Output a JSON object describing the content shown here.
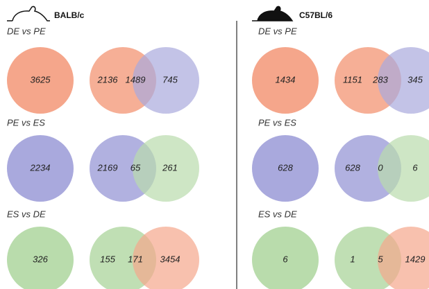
{
  "panels": [
    {
      "strain": "BALB/c",
      "comparisons": [
        {
          "label": "DE vs PE",
          "total": 3625,
          "venn": [
            2136,
            1489,
            745
          ],
          "colors": [
            "#f5a68b",
            "#a9a9dd"
          ]
        },
        {
          "label": "PE vs ES",
          "total": 2234,
          "venn": [
            2169,
            65,
            261
          ],
          "colors": [
            "#a9a9dd",
            "#b9dcac"
          ]
        },
        {
          "label": "ES vs DE",
          "total": 326,
          "venn": [
            155,
            171,
            3454
          ],
          "colors": [
            "#b9dcac",
            "#f5a68b"
          ]
        }
      ]
    },
    {
      "strain": "C57BL/6",
      "comparisons": [
        {
          "label": "DE vs PE",
          "total": 1434,
          "venn": [
            1151,
            283,
            345
          ],
          "colors": [
            "#f5a68b",
            "#a9a9dd"
          ]
        },
        {
          "label": "PE vs ES",
          "total": 628,
          "venn": [
            628,
            0,
            6
          ],
          "colors": [
            "#a9a9dd",
            "#b9dcac"
          ]
        },
        {
          "label": "ES vs DE",
          "total": 6,
          "venn": [
            1,
            5,
            1429
          ],
          "colors": [
            "#b9dcac",
            "#f5a68b"
          ]
        }
      ]
    }
  ]
}
